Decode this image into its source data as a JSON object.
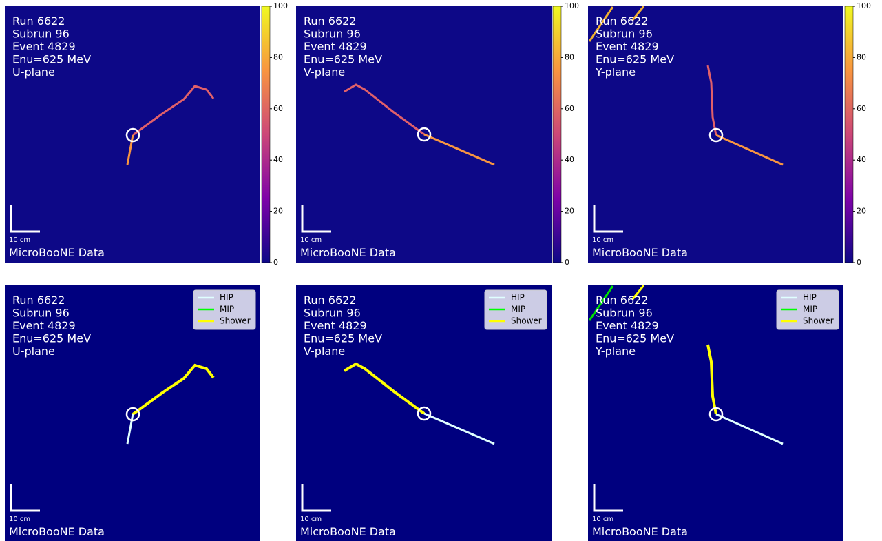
{
  "panels": [
    {
      "run": "Run 6622",
      "subrun": "Subrun 96",
      "event": "Event 4829",
      "energy": "Enu=625 MeV",
      "plane": "U-plane",
      "scale": "10 cm",
      "label": "MicroBooNE Data"
    },
    {
      "run": "Run 6622",
      "subrun": "Subrun 96",
      "event": "Event 4829",
      "energy": "Enu=625 MeV",
      "plane": "V-plane",
      "scale": "10 cm",
      "label": "MicroBooNE Data"
    },
    {
      "run": "Run 6622",
      "subrun": "Subrun 96",
      "event": "Event 4829",
      "energy": "Enu=625 MeV",
      "plane": "Y-plane",
      "scale": "10 cm",
      "label": "MicroBooNE Data"
    },
    {
      "run": "Run 6622",
      "subrun": "Subrun 96",
      "event": "Event 4829",
      "energy": "Enu=625 MeV",
      "plane": "U-plane",
      "scale": "10 cm",
      "label": "MicroBooNE Data"
    },
    {
      "run": "Run 6622",
      "subrun": "Subrun 96",
      "event": "Event 4829",
      "energy": "Enu=625 MeV",
      "plane": "V-plane",
      "scale": "10 cm",
      "label": "MicroBooNE Data"
    },
    {
      "run": "Run 6622",
      "subrun": "Subrun 96",
      "event": "Event 4829",
      "energy": "Enu=625 MeV",
      "plane": "Y-plane",
      "scale": "10 cm",
      "label": "MicroBooNE Data"
    }
  ],
  "colorbar": {
    "ticks": [
      "0",
      "20",
      "40",
      "60",
      "80",
      "100"
    ]
  },
  "legend": [
    "HIP",
    "MIP",
    "Shower"
  ]
}
